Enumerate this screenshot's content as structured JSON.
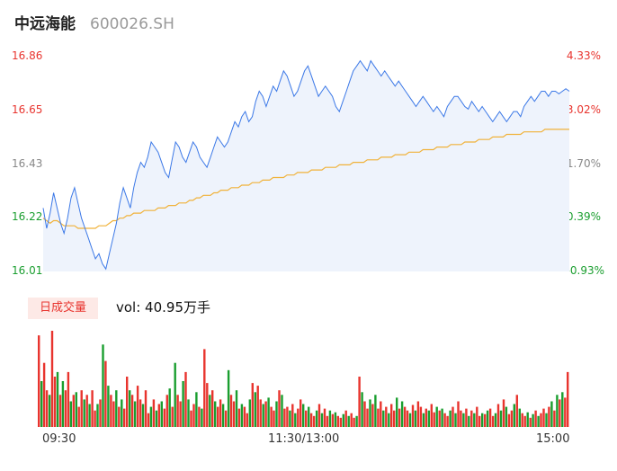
{
  "header": {
    "stock_name": "中远海能",
    "stock_code": "600026.SH"
  },
  "price_axis": {
    "left_ticks": [
      "16.86",
      "16.65",
      "16.43",
      "16.22",
      "16.01"
    ],
    "right_ticks": [
      "4.33%",
      "3.02%",
      "1.70%",
      "0.39%",
      "-0.93%"
    ],
    "colors": [
      "#e8342e",
      "#e8342e",
      "#888888",
      "#1a9e2f",
      "#1a9e2f"
    ]
  },
  "volume_panel": {
    "tab_label": "日成交量",
    "volume_text": "vol: 40.95万手"
  },
  "time_axis": [
    "09:30",
    "11:30/13:00",
    "15:00"
  ],
  "colors": {
    "price_line": "#3b78e7",
    "avg_line": "#f0b23a",
    "up": "#e8342e",
    "down": "#1a9e2f",
    "fill": "#eef3fc"
  },
  "chart_data": {
    "type": "line",
    "ylim": [
      16.01,
      16.86
    ],
    "price": [
      16.26,
      16.18,
      16.24,
      16.32,
      16.26,
      16.2,
      16.16,
      16.22,
      16.3,
      16.34,
      16.28,
      16.22,
      16.18,
      16.14,
      16.1,
      16.06,
      16.08,
      16.04,
      16.02,
      16.08,
      16.14,
      16.2,
      16.28,
      16.34,
      16.3,
      16.26,
      16.34,
      16.4,
      16.44,
      16.42,
      16.46,
      16.52,
      16.5,
      16.48,
      16.44,
      16.4,
      16.38,
      16.45,
      16.52,
      16.5,
      16.46,
      16.44,
      16.48,
      16.52,
      16.5,
      16.46,
      16.44,
      16.42,
      16.46,
      16.5,
      16.54,
      16.52,
      16.5,
      16.52,
      16.56,
      16.6,
      16.58,
      16.62,
      16.64,
      16.6,
      16.62,
      16.68,
      16.72,
      16.7,
      16.66,
      16.7,
      16.74,
      16.72,
      16.76,
      16.8,
      16.78,
      16.74,
      16.7,
      16.72,
      16.76,
      16.8,
      16.82,
      16.78,
      16.74,
      16.7,
      16.72,
      16.74,
      16.72,
      16.7,
      16.66,
      16.64,
      16.68,
      16.72,
      16.76,
      16.8,
      16.82,
      16.84,
      16.82,
      16.8,
      16.84,
      16.82,
      16.8,
      16.78,
      16.8,
      16.78,
      16.76,
      16.74,
      16.76,
      16.74,
      16.72,
      16.7,
      16.68,
      16.66,
      16.68,
      16.7,
      16.68,
      16.66,
      16.64,
      16.66,
      16.64,
      16.62,
      16.66,
      16.68,
      16.7,
      16.7,
      16.68,
      16.66,
      16.65,
      16.68,
      16.66,
      16.64,
      16.66,
      16.64,
      16.62,
      16.6,
      16.62,
      16.64,
      16.62,
      16.6,
      16.62,
      16.64,
      16.64,
      16.62,
      16.66,
      16.68,
      16.7,
      16.68,
      16.7,
      16.72,
      16.72,
      16.7,
      16.72,
      16.72,
      16.71,
      16.72,
      16.73,
      16.72
    ],
    "avg": [
      16.22,
      16.21,
      16.2,
      16.21,
      16.21,
      16.2,
      16.19,
      16.19,
      16.19,
      16.19,
      16.18,
      16.18,
      16.18,
      16.18,
      16.18,
      16.18,
      16.19,
      16.19,
      16.19,
      16.2,
      16.21,
      16.21,
      16.22,
      16.22,
      16.23,
      16.23,
      16.24,
      16.24,
      16.24,
      16.25,
      16.25,
      16.25,
      16.25,
      16.26,
      16.26,
      16.26,
      16.27,
      16.27,
      16.27,
      16.28,
      16.28,
      16.28,
      16.29,
      16.29,
      16.3,
      16.3,
      16.31,
      16.31,
      16.31,
      16.32,
      16.32,
      16.33,
      16.33,
      16.33,
      16.34,
      16.34,
      16.34,
      16.35,
      16.35,
      16.35,
      16.36,
      16.36,
      16.36,
      16.37,
      16.37,
      16.37,
      16.38,
      16.38,
      16.38,
      16.38,
      16.39,
      16.39,
      16.39,
      16.4,
      16.4,
      16.4,
      16.4,
      16.41,
      16.41,
      16.41,
      16.41,
      16.42,
      16.42,
      16.42,
      16.42,
      16.43,
      16.43,
      16.43,
      16.43,
      16.44,
      16.44,
      16.44,
      16.44,
      16.45,
      16.45,
      16.45,
      16.45,
      16.46,
      16.46,
      16.46,
      16.46,
      16.47,
      16.47,
      16.47,
      16.47,
      16.48,
      16.48,
      16.48,
      16.48,
      16.49,
      16.49,
      16.49,
      16.49,
      16.5,
      16.5,
      16.5,
      16.5,
      16.51,
      16.51,
      16.51,
      16.51,
      16.52,
      16.52,
      16.52,
      16.52,
      16.53,
      16.53,
      16.53,
      16.53,
      16.54,
      16.54,
      16.54,
      16.54,
      16.55,
      16.55,
      16.55,
      16.55,
      16.55,
      16.56,
      16.56,
      16.56,
      16.56,
      16.56,
      16.56,
      16.57,
      16.57,
      16.57,
      16.57,
      16.57,
      16.57,
      16.57,
      16.57
    ],
    "volume_up": [
      1,
      0,
      1,
      1,
      0,
      1,
      1,
      0,
      1,
      0,
      1,
      1,
      0,
      1,
      0,
      1,
      1,
      0,
      1,
      0,
      1,
      1,
      0,
      1,
      0,
      1,
      0,
      1,
      1,
      0,
      1,
      0,
      1,
      1,
      0,
      1,
      0,
      1,
      1,
      0,
      1,
      1,
      0,
      1,
      0,
      1,
      0,
      1,
      1,
      0,
      1,
      0,
      1,
      1,
      0,
      1,
      0,
      1,
      1,
      0,
      1,
      0,
      1,
      1,
      0,
      1,
      0,
      1,
      1,
      0,
      1,
      0,
      1,
      1,
      0,
      1,
      0,
      1,
      1,
      0,
      1,
      0,
      1,
      1,
      0,
      1,
      0,
      1,
      1,
      0,
      1,
      0,
      1,
      1,
      0,
      1,
      0,
      1,
      1,
      0,
      1,
      0,
      1,
      1,
      0,
      1,
      0,
      1,
      1,
      0,
      1,
      0,
      1,
      1,
      0,
      1,
      0,
      1,
      1,
      0,
      1,
      0,
      1,
      1,
      0,
      1,
      0,
      1,
      1,
      0,
      1,
      0,
      1,
      1,
      0,
      1,
      0,
      1,
      1,
      0,
      1,
      0,
      1,
      1,
      0,
      1,
      0,
      1,
      1,
      0,
      1,
      0,
      1,
      1,
      0,
      1,
      0,
      1,
      1,
      0,
      1,
      0,
      1,
      0,
      1,
      1,
      0,
      1,
      0,
      1,
      1,
      0,
      1,
      0,
      1,
      0,
      1,
      1,
      0,
      1,
      0,
      1,
      1,
      0,
      1,
      0,
      1,
      0,
      1,
      1,
      0,
      1,
      0,
      1,
      0
    ],
    "volume": [
      100,
      50,
      70,
      40,
      35,
      105,
      55,
      60,
      35,
      50,
      40,
      60,
      28,
      35,
      38,
      22,
      40,
      30,
      35,
      25,
      40,
      18,
      25,
      30,
      90,
      72,
      45,
      35,
      28,
      40,
      22,
      30,
      20,
      55,
      40,
      35,
      28,
      45,
      30,
      25,
      40,
      15,
      22,
      30,
      18,
      25,
      28,
      20,
      35,
      42,
      22,
      70,
      35,
      28,
      50,
      60,
      30,
      18,
      25,
      38,
      22,
      20,
      85,
      48,
      35,
      40,
      28,
      22,
      30,
      25,
      18,
      62,
      35,
      28,
      40,
      20,
      25,
      22,
      15,
      30,
      48,
      38,
      45,
      30,
      25,
      28,
      32,
      22,
      18,
      28,
      40,
      35,
      20,
      22,
      18,
      25,
      15,
      20,
      30,
      25,
      18,
      22,
      15,
      12,
      18,
      25,
      15,
      20,
      12,
      18,
      14,
      16,
      12,
      10,
      14,
      18,
      12,
      15,
      10,
      12,
      55,
      38,
      28,
      20,
      30,
      25,
      35,
      20,
      28,
      18,
      22,
      15,
      25,
      18,
      32,
      20,
      28,
      22,
      18,
      15,
      24,
      18,
      28,
      22,
      15,
      20,
      18,
      25,
      16,
      22,
      18,
      20,
      15,
      12,
      18,
      22,
      15,
      28,
      18,
      15,
      20,
      12,
      18,
      15,
      22,
      12,
      15,
      14,
      18,
      20,
      12,
      15,
      25,
      18,
      30,
      22,
      14,
      18,
      25,
      35,
      20,
      15,
      12,
      16,
      10,
      14,
      18,
      12,
      15,
      20,
      15,
      22,
      28,
      18,
      35,
      30,
      38,
      32,
      60
    ]
  }
}
